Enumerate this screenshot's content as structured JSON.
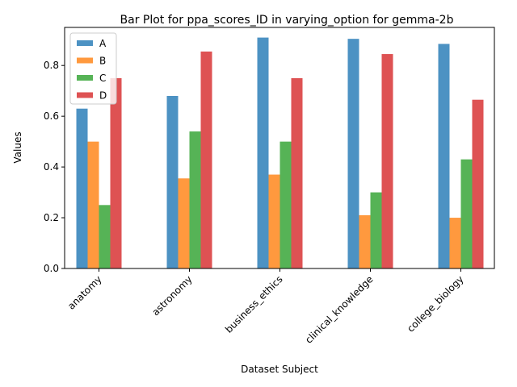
{
  "chart_data": {
    "type": "bar",
    "title": "Bar Plot for ppa_scores_ID in varying_option for gemma-2b",
    "xlabel": "Dataset Subject",
    "ylabel": "Values",
    "ylim": [
      0,
      0.95
    ],
    "yticks": [
      "0.0",
      "0.2",
      "0.4",
      "0.6",
      "0.8"
    ],
    "categories": [
      "anatomy",
      "astronomy",
      "business_ethics",
      "clinical_knowledge",
      "college_biology"
    ],
    "series": [
      {
        "name": "A",
        "color": "#1f77b4",
        "values": [
          0.63,
          0.68,
          0.91,
          0.905,
          0.885
        ]
      },
      {
        "name": "B",
        "color": "#ff7f0e",
        "values": [
          0.5,
          0.355,
          0.37,
          0.21,
          0.2
        ]
      },
      {
        "name": "C",
        "color": "#2ca02c",
        "values": [
          0.25,
          0.54,
          0.5,
          0.3,
          0.43
        ]
      },
      {
        "name": "D",
        "color": "#d62728",
        "values": [
          0.75,
          0.855,
          0.75,
          0.845,
          0.665
        ]
      }
    ],
    "legend_position": "top-left",
    "grid": false
  }
}
